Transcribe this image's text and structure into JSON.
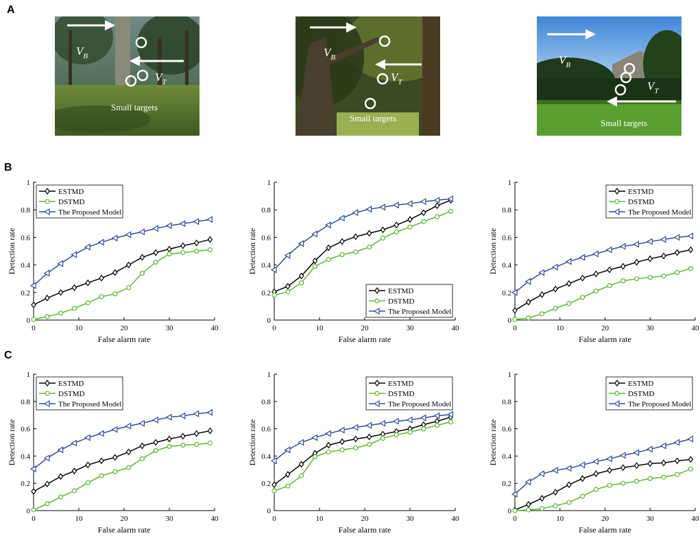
{
  "panels": {
    "a": "A",
    "b": "B",
    "c": "C"
  },
  "scenes": [
    {
      "vb_label": "V",
      "vb_sub": "B",
      "vt_label": "V",
      "vt_sub": "T",
      "caption": "Small targets"
    },
    {
      "vb_label": "V",
      "vb_sub": "B",
      "vt_label": "V",
      "vt_sub": "T",
      "caption": "Small targets"
    },
    {
      "vb_label": "V",
      "vb_sub": "B",
      "vt_label": "V",
      "vt_sub": "T",
      "caption": "Small targets"
    }
  ],
  "colors": {
    "estmd": "#000000",
    "dstmd": "#5cb82e",
    "proposed": "#2e4ba0"
  },
  "chart_data": [
    {
      "id": "B1",
      "type": "line",
      "xlabel": "False alarm rate",
      "ylabel": "Detection rate",
      "xlim": [
        0,
        40
      ],
      "ylim": [
        0,
        1
      ],
      "xticks": [
        0,
        10,
        20,
        30,
        40
      ],
      "yticks": [
        0,
        0.2,
        0.4,
        0.6,
        0.8,
        1
      ],
      "legend_position": "top-left",
      "x": [
        0,
        3,
        6,
        9,
        12,
        15,
        18,
        21,
        24,
        27,
        30,
        33,
        36,
        39
      ],
      "series": [
        {
          "name": "ESTMD",
          "marker": "diamond",
          "color": "#000000",
          "values": [
            0.11,
            0.16,
            0.2,
            0.235,
            0.27,
            0.305,
            0.345,
            0.4,
            0.455,
            0.49,
            0.515,
            0.54,
            0.56,
            0.585
          ]
        },
        {
          "name": "DSTMD",
          "marker": "circle",
          "color": "#5cb82e",
          "values": [
            0.005,
            0.025,
            0.05,
            0.085,
            0.125,
            0.17,
            0.19,
            0.235,
            0.34,
            0.42,
            0.48,
            0.49,
            0.5,
            0.51
          ]
        },
        {
          "name": "The Proposed Model",
          "marker": "triangle-left",
          "color": "#2e4ba0",
          "values": [
            0.25,
            0.34,
            0.41,
            0.475,
            0.53,
            0.565,
            0.595,
            0.62,
            0.64,
            0.665,
            0.685,
            0.7,
            0.715,
            0.73
          ]
        }
      ]
    },
    {
      "id": "B2",
      "type": "line",
      "xlabel": "False alarm rate",
      "ylabel": "Detection rate",
      "xlim": [
        0,
        40
      ],
      "ylim": [
        0,
        1
      ],
      "xticks": [
        0,
        10,
        20,
        30,
        40
      ],
      "yticks": [
        0,
        0.2,
        0.4,
        0.6,
        0.8,
        1
      ],
      "legend_position": "bottom-right",
      "x": [
        0,
        3,
        6,
        9,
        12,
        15,
        18,
        21,
        24,
        27,
        30,
        33,
        36,
        39
      ],
      "series": [
        {
          "name": "ESTMD",
          "marker": "diamond",
          "color": "#000000",
          "values": [
            0.205,
            0.245,
            0.32,
            0.43,
            0.525,
            0.57,
            0.605,
            0.63,
            0.655,
            0.69,
            0.73,
            0.78,
            0.83,
            0.87
          ]
        },
        {
          "name": "DSTMD",
          "marker": "circle",
          "color": "#5cb82e",
          "values": [
            0.18,
            0.205,
            0.27,
            0.39,
            0.44,
            0.475,
            0.495,
            0.53,
            0.595,
            0.64,
            0.675,
            0.715,
            0.75,
            0.79
          ]
        },
        {
          "name": "The Proposed Model",
          "marker": "triangle-left",
          "color": "#2e4ba0",
          "values": [
            0.365,
            0.47,
            0.555,
            0.625,
            0.69,
            0.74,
            0.78,
            0.805,
            0.82,
            0.835,
            0.845,
            0.86,
            0.87,
            0.88
          ]
        }
      ]
    },
    {
      "id": "B3",
      "type": "line",
      "xlabel": "False alarm rate",
      "ylabel": "Detection rate",
      "xlim": [
        0,
        40
      ],
      "ylim": [
        0,
        1
      ],
      "xticks": [
        0,
        10,
        20,
        30,
        40
      ],
      "yticks": [
        0,
        0.2,
        0.4,
        0.6,
        0.8,
        1
      ],
      "legend_position": "top-right",
      "x": [
        0,
        3,
        6,
        9,
        12,
        15,
        18,
        21,
        24,
        27,
        30,
        33,
        36,
        39
      ],
      "series": [
        {
          "name": "ESTMD",
          "marker": "diamond",
          "color": "#000000",
          "values": [
            0.07,
            0.13,
            0.185,
            0.225,
            0.265,
            0.305,
            0.335,
            0.365,
            0.39,
            0.42,
            0.445,
            0.465,
            0.49,
            0.51
          ]
        },
        {
          "name": "DSTMD",
          "marker": "circle",
          "color": "#5cb82e",
          "values": [
            0.005,
            0.015,
            0.045,
            0.085,
            0.12,
            0.165,
            0.21,
            0.25,
            0.285,
            0.3,
            0.31,
            0.32,
            0.345,
            0.375
          ]
        },
        {
          "name": "The Proposed Model",
          "marker": "triangle-left",
          "color": "#2e4ba0",
          "values": [
            0.2,
            0.28,
            0.345,
            0.385,
            0.425,
            0.455,
            0.48,
            0.51,
            0.535,
            0.55,
            0.57,
            0.585,
            0.6,
            0.61
          ]
        }
      ]
    },
    {
      "id": "C1",
      "type": "line",
      "xlabel": "False alarm rate",
      "ylabel": "Detection rate",
      "xlim": [
        0,
        40
      ],
      "ylim": [
        0,
        1
      ],
      "xticks": [
        0,
        10,
        20,
        30,
        40
      ],
      "yticks": [
        0,
        0.2,
        0.4,
        0.6,
        0.8,
        1
      ],
      "legend_position": "top-left",
      "x": [
        0,
        3,
        6,
        9,
        12,
        15,
        18,
        21,
        24,
        27,
        30,
        33,
        36,
        39
      ],
      "series": [
        {
          "name": "ESTMD",
          "marker": "diamond",
          "color": "#000000",
          "values": [
            0.14,
            0.195,
            0.25,
            0.29,
            0.335,
            0.365,
            0.39,
            0.43,
            0.475,
            0.5,
            0.525,
            0.545,
            0.565,
            0.585
          ]
        },
        {
          "name": "DSTMD",
          "marker": "circle",
          "color": "#5cb82e",
          "values": [
            0.005,
            0.05,
            0.1,
            0.145,
            0.205,
            0.255,
            0.285,
            0.315,
            0.38,
            0.44,
            0.47,
            0.48,
            0.485,
            0.495
          ]
        },
        {
          "name": "The Proposed Model",
          "marker": "triangle-left",
          "color": "#2e4ba0",
          "values": [
            0.305,
            0.385,
            0.445,
            0.495,
            0.535,
            0.565,
            0.595,
            0.62,
            0.64,
            0.665,
            0.685,
            0.695,
            0.71,
            0.72
          ]
        }
      ]
    },
    {
      "id": "C2",
      "type": "line",
      "xlabel": "False alarm rate",
      "ylabel": "Detection rate",
      "xlim": [
        0,
        40
      ],
      "ylim": [
        0,
        1
      ],
      "xticks": [
        0,
        10,
        20,
        30,
        40
      ],
      "yticks": [
        0,
        0.2,
        0.4,
        0.6,
        0.8,
        1
      ],
      "legend_position": "top-right",
      "x": [
        0,
        3,
        6,
        9,
        12,
        15,
        18,
        21,
        24,
        27,
        30,
        33,
        36,
        39
      ],
      "series": [
        {
          "name": "ESTMD",
          "marker": "diamond",
          "color": "#000000",
          "values": [
            0.19,
            0.265,
            0.34,
            0.42,
            0.48,
            0.505,
            0.525,
            0.54,
            0.56,
            0.58,
            0.6,
            0.63,
            0.655,
            0.685
          ]
        },
        {
          "name": "DSTMD",
          "marker": "circle",
          "color": "#5cb82e",
          "values": [
            0.145,
            0.18,
            0.255,
            0.395,
            0.43,
            0.445,
            0.46,
            0.485,
            0.53,
            0.555,
            0.575,
            0.6,
            0.625,
            0.65
          ]
        },
        {
          "name": "The Proposed Model",
          "marker": "triangle-left",
          "color": "#2e4ba0",
          "values": [
            0.365,
            0.445,
            0.5,
            0.535,
            0.565,
            0.59,
            0.61,
            0.625,
            0.64,
            0.655,
            0.665,
            0.68,
            0.695,
            0.705
          ]
        }
      ]
    },
    {
      "id": "C3",
      "type": "line",
      "xlabel": "False alarm rate",
      "ylabel": "Detection rate",
      "xlim": [
        0,
        40
      ],
      "ylim": [
        0,
        1
      ],
      "xticks": [
        0,
        10,
        20,
        30,
        40
      ],
      "yticks": [
        0,
        0.2,
        0.4,
        0.6,
        0.8,
        1
      ],
      "legend_position": "top-right",
      "x": [
        0,
        3,
        6,
        9,
        12,
        15,
        18,
        21,
        24,
        27,
        30,
        33,
        36,
        39
      ],
      "series": [
        {
          "name": "ESTMD",
          "marker": "diamond",
          "color": "#000000",
          "values": [
            0.005,
            0.045,
            0.09,
            0.135,
            0.19,
            0.235,
            0.27,
            0.295,
            0.315,
            0.33,
            0.345,
            0.35,
            0.365,
            0.375
          ]
        },
        {
          "name": "DSTMD",
          "marker": "circle",
          "color": "#5cb82e",
          "values": [
            0.0,
            0.005,
            0.015,
            0.035,
            0.06,
            0.105,
            0.155,
            0.185,
            0.2,
            0.215,
            0.235,
            0.245,
            0.265,
            0.305
          ]
        },
        {
          "name": "The Proposed Model",
          "marker": "triangle-left",
          "color": "#2e4ba0",
          "values": [
            0.12,
            0.21,
            0.27,
            0.295,
            0.31,
            0.335,
            0.36,
            0.38,
            0.405,
            0.425,
            0.45,
            0.475,
            0.5,
            0.525
          ]
        }
      ]
    }
  ]
}
